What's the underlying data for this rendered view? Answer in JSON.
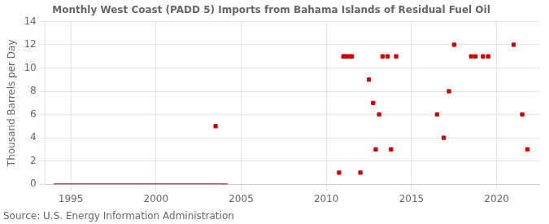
{
  "chart_data": {
    "type": "scatter",
    "title": "Monthly West Coast (PADD 5) Imports from Bahama Islands of Residual Fuel Oil",
    "ylabel": "Thousand Barrels per Day",
    "source": "Source: U.S. Energy Information Administration",
    "xlim": [
      1993.5,
      2022.5
    ],
    "xticks": [
      1995,
      2000,
      2005,
      2010,
      2015,
      2020
    ],
    "ylim": [
      0,
      14
    ],
    "yticks": [
      0,
      2,
      4,
      6,
      8,
      10,
      12,
      14
    ],
    "grid": true,
    "series": [
      {
        "type": "line",
        "color": "#8b1a1a",
        "x": [
          1994.0,
          2004.2
        ],
        "values": [
          0,
          0
        ]
      },
      {
        "type": "scatter",
        "color": "#cc0000",
        "marker": "square",
        "x": [
          2003.5,
          2010.75,
          2011.0,
          2011.1,
          2011.2,
          2011.4,
          2011.5,
          2012.0,
          2012.5,
          2012.75,
          2012.9,
          2013.1,
          2013.3,
          2013.6,
          2013.8,
          2014.1,
          2016.5,
          2016.9,
          2017.2,
          2017.5,
          2018.5,
          2018.75,
          2019.2,
          2019.5,
          2021.0,
          2021.5,
          2021.8
        ],
        "values": [
          5,
          1,
          11,
          11,
          11,
          11,
          11,
          1,
          9,
          7,
          3,
          6,
          11,
          11,
          3,
          11,
          6,
          4,
          8,
          12,
          11,
          11,
          11,
          11,
          12,
          6,
          3
        ]
      }
    ]
  }
}
